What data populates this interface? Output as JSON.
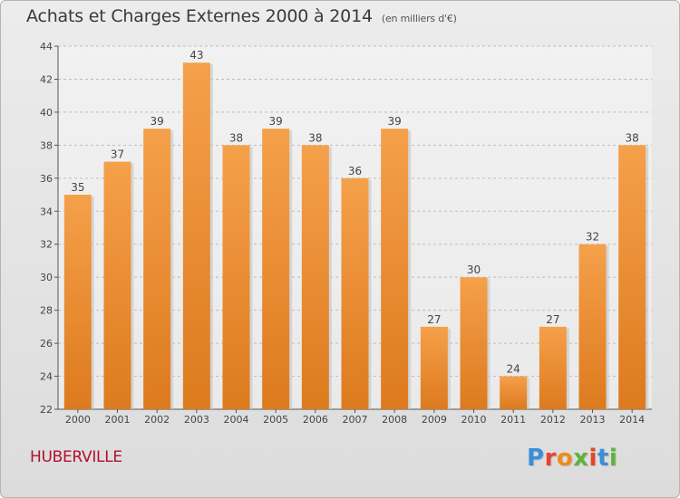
{
  "title": "Achats et Charges Externes 2000 à 2014",
  "subtitle": "(en milliers d'€)",
  "place": "HUBERVILLE",
  "logo": {
    "text": "Proxiti",
    "colors": [
      "#3a8fd8",
      "#e8442a",
      "#f08a1c",
      "#5fb33a",
      "#e8442a",
      "#3a8fd8",
      "#5fb33a"
    ]
  },
  "colors": {
    "bar_top": "#f5a04a",
    "bar_bottom": "#dd7a1e",
    "bar_shadow": "#c4c4c4"
  },
  "chart_data": {
    "type": "bar",
    "categories": [
      "2000",
      "2001",
      "2002",
      "2003",
      "2004",
      "2005",
      "2006",
      "2007",
      "2008",
      "2009",
      "2010",
      "2011",
      "2012",
      "2013",
      "2014"
    ],
    "values": [
      35,
      37,
      39,
      43,
      38,
      39,
      38,
      36,
      39,
      27,
      30,
      24,
      27,
      32,
      38
    ],
    "ylim": [
      22,
      44
    ],
    "yticks": [
      22,
      24,
      26,
      28,
      30,
      32,
      34,
      36,
      38,
      40,
      42,
      44
    ],
    "grid": true,
    "data_labels": true
  }
}
